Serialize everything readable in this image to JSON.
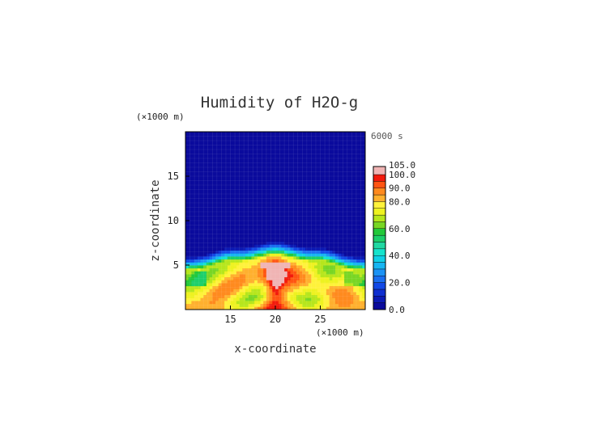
{
  "chart_data": {
    "type": "heatmap",
    "title": "Humidity of H2O-g",
    "time_label": "6000 s",
    "xlabel": "x-coordinate",
    "ylabel": "z-coordinate",
    "x_unit": "(×1000 m)",
    "y_unit": "(×1000 m)",
    "xlim": [
      10,
      30
    ],
    "ylim": [
      0,
      20
    ],
    "x_ticks": [
      "15",
      "20",
      "25"
    ],
    "x_tick_values": [
      15,
      20,
      25
    ],
    "y_ticks": [
      "5",
      "10",
      "15"
    ],
    "y_tick_values": [
      5,
      10,
      15
    ],
    "colorbar": {
      "labels": [
        "0.0",
        "20.0",
        "40.0",
        "60.0",
        "80.0",
        "90.0",
        "100.0",
        "105.0"
      ],
      "label_values": [
        0,
        20,
        40,
        60,
        80,
        90,
        100,
        105
      ],
      "bins": [
        {
          "lo": 0,
          "hi": 5,
          "color": "#0a0a9c"
        },
        {
          "lo": 5,
          "hi": 10,
          "color": "#0b1ab4"
        },
        {
          "lo": 10,
          "hi": 15,
          "color": "#0f2fd0"
        },
        {
          "lo": 15,
          "hi": 20,
          "color": "#1248e6"
        },
        {
          "lo": 20,
          "hi": 25,
          "color": "#1a6ef0"
        },
        {
          "lo": 25,
          "hi": 30,
          "color": "#1c93f5"
        },
        {
          "lo": 30,
          "hi": 35,
          "color": "#17b5f2"
        },
        {
          "lo": 35,
          "hi": 40,
          "color": "#10d0e6"
        },
        {
          "lo": 40,
          "hi": 45,
          "color": "#16e3cc"
        },
        {
          "lo": 45,
          "hi": 50,
          "color": "#20d8a2"
        },
        {
          "lo": 50,
          "hi": 55,
          "color": "#1ccf6a"
        },
        {
          "lo": 55,
          "hi": 60,
          "color": "#22c83a"
        },
        {
          "lo": 60,
          "hi": 65,
          "color": "#78d624"
        },
        {
          "lo": 65,
          "hi": 70,
          "color": "#b6e61c"
        },
        {
          "lo": 70,
          "hi": 75,
          "color": "#eef220"
        },
        {
          "lo": 75,
          "hi": 80,
          "color": "#fff23a"
        },
        {
          "lo": 80,
          "hi": 85,
          "color": "#ffb02e"
        },
        {
          "lo": 85,
          "hi": 90,
          "color": "#ff8a1e"
        },
        {
          "lo": 90,
          "hi": 95,
          "color": "#ff5412"
        },
        {
          "lo": 95,
          "hi": 100,
          "color": "#f21a0c"
        },
        {
          "lo": 100,
          "hi": 105,
          "color": "#f0b4b4"
        }
      ]
    },
    "grid": true
  }
}
